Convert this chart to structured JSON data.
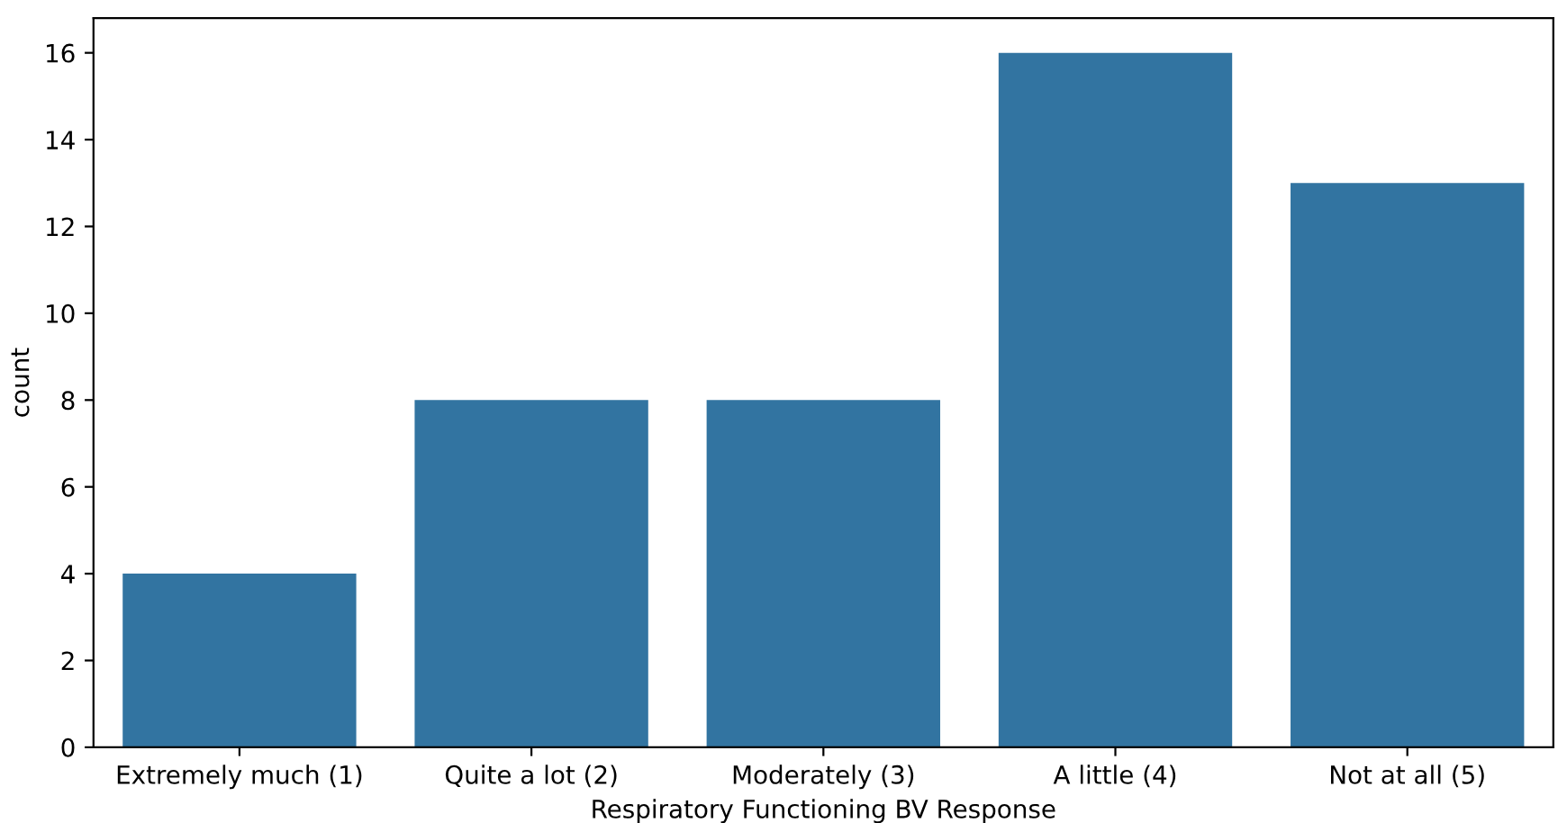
{
  "chart_data": {
    "type": "bar",
    "xlabel": "Respiratory Functioning BV Response",
    "ylabel": "count",
    "categories": [
      "Extremely much (1)",
      "Quite a lot (2)",
      "Moderately (3)",
      "A little (4)",
      "Not at all (5)"
    ],
    "values": [
      4,
      8,
      8,
      16,
      13
    ],
    "color": "#3274a1",
    "ylim": [
      0,
      16.8
    ],
    "yticks": [
      0,
      2,
      4,
      6,
      8,
      10,
      12,
      14,
      16
    ]
  }
}
